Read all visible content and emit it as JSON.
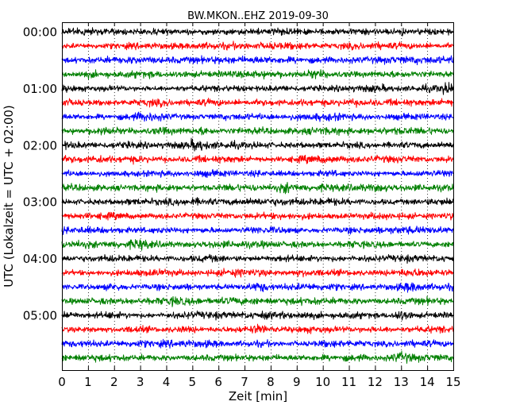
{
  "chart_data": {
    "type": "line",
    "title": "BW.MKON..EHZ 2019-09-30",
    "xlabel": "Zeit  [min]",
    "ylabel": "UTC (Lokalzeit = UTC + 02:00)",
    "xlim": [
      0,
      15
    ],
    "x_ticks": [
      "0",
      "1",
      "2",
      "3",
      "4",
      "5",
      "6",
      "7",
      "8",
      "9",
      "10",
      "11",
      "12",
      "13",
      "14",
      "15"
    ],
    "y_ticks": [
      "00:00",
      "01:00",
      "02:00",
      "03:00",
      "04:00",
      "05:00"
    ],
    "trace_colors": [
      "#000000",
      "#ff0000",
      "#0000ff",
      "#008000"
    ],
    "trace_count": 24,
    "minutes_per_trace": 15,
    "grid": "vertical dotted",
    "bursts": [
      {
        "trace": 3,
        "minute": 9.7,
        "strength": 1.6
      },
      {
        "trace": 4,
        "minute": 14.8,
        "strength": 1.8
      },
      {
        "trace": 6,
        "minute": 3.2,
        "strength": 1.5
      },
      {
        "trace": 7,
        "minute": 1.5,
        "strength": 1.5
      },
      {
        "trace": 7,
        "minute": 5.5,
        "strength": 1.6
      },
      {
        "trace": 8,
        "minute": 5.2,
        "strength": 2.0
      },
      {
        "trace": 8,
        "minute": 4.0,
        "strength": 1.3
      },
      {
        "trace": 9,
        "minute": 1.5,
        "strength": 1.4
      },
      {
        "trace": 10,
        "minute": 7.6,
        "strength": 1.3
      },
      {
        "trace": 11,
        "minute": 8.6,
        "strength": 2.0
      },
      {
        "trace": 15,
        "minute": 3.0,
        "strength": 1.6
      },
      {
        "trace": 17,
        "minute": 13.6,
        "strength": 1.3
      },
      {
        "trace": 18,
        "minute": 2.0,
        "strength": 1.5
      },
      {
        "trace": 18,
        "minute": 7.6,
        "strength": 1.6
      },
      {
        "trace": 18,
        "minute": 13.4,
        "strength": 1.6
      },
      {
        "trace": 19,
        "minute": 4.3,
        "strength": 1.4
      },
      {
        "trace": 20,
        "minute": 9.3,
        "strength": 1.5
      },
      {
        "trace": 20,
        "minute": 13.0,
        "strength": 2.0
      },
      {
        "trace": 21,
        "minute": 7.6,
        "strength": 1.5
      },
      {
        "trace": 23,
        "minute": 13.0,
        "strength": 1.7
      }
    ]
  }
}
